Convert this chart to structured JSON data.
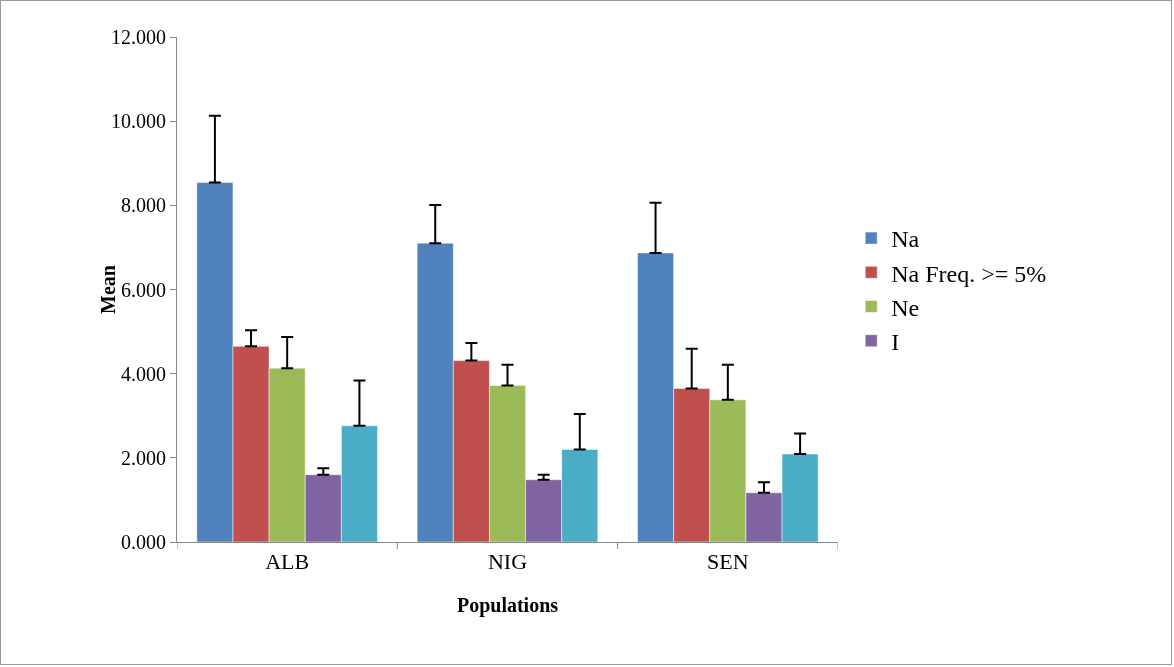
{
  "chart_data": {
    "type": "bar",
    "xlabel": "Populations",
    "ylabel": "Mean",
    "categories": [
      "ALB",
      "NIG",
      "SEN"
    ],
    "series": [
      {
        "name": "Na",
        "color": "#4f81bd",
        "values": [
          8.54,
          7.1,
          6.87
        ],
        "errors": [
          [
            8.54,
            10.13
          ],
          [
            7.1,
            8.01
          ],
          [
            6.87,
            8.06
          ]
        ]
      },
      {
        "name": "Na Freq. >= 5%",
        "color": "#c0504d",
        "values": [
          4.65,
          4.31,
          3.65
        ],
        "errors": [
          [
            4.65,
            5.03
          ],
          [
            4.31,
            4.73
          ],
          [
            3.65,
            4.59
          ]
        ]
      },
      {
        "name": "Ne",
        "color": "#9bbb59",
        "values": [
          4.13,
          3.72,
          3.38
        ],
        "errors": [
          [
            4.13,
            4.87
          ],
          [
            3.72,
            4.21
          ],
          [
            3.38,
            4.21
          ]
        ]
      },
      {
        "name": "I",
        "color": "#8064a2",
        "values": [
          1.6,
          1.48,
          1.17
        ],
        "errors": [
          [
            1.6,
            1.75
          ],
          [
            1.48,
            1.6
          ],
          [
            1.17,
            1.42
          ]
        ]
      },
      {
        "color": "#4bacc6",
        "values": [
          2.76,
          2.2,
          2.09
        ],
        "errors": [
          [
            2.76,
            3.84
          ],
          [
            2.2,
            3.04
          ],
          [
            2.09,
            2.58
          ]
        ]
      }
    ],
    "ylim": [
      0,
      12
    ],
    "yticks": [
      {
        "value": 0,
        "label": "0.000"
      },
      {
        "value": 2,
        "label": "2.000"
      },
      {
        "value": 4,
        "label": "4.000"
      },
      {
        "value": 6,
        "label": "6.000"
      },
      {
        "value": 8,
        "label": "8.000"
      },
      {
        "value": 10,
        "label": "10.000"
      },
      {
        "value": 12,
        "label": "12.000"
      }
    ],
    "grid": false,
    "legend": "right"
  }
}
